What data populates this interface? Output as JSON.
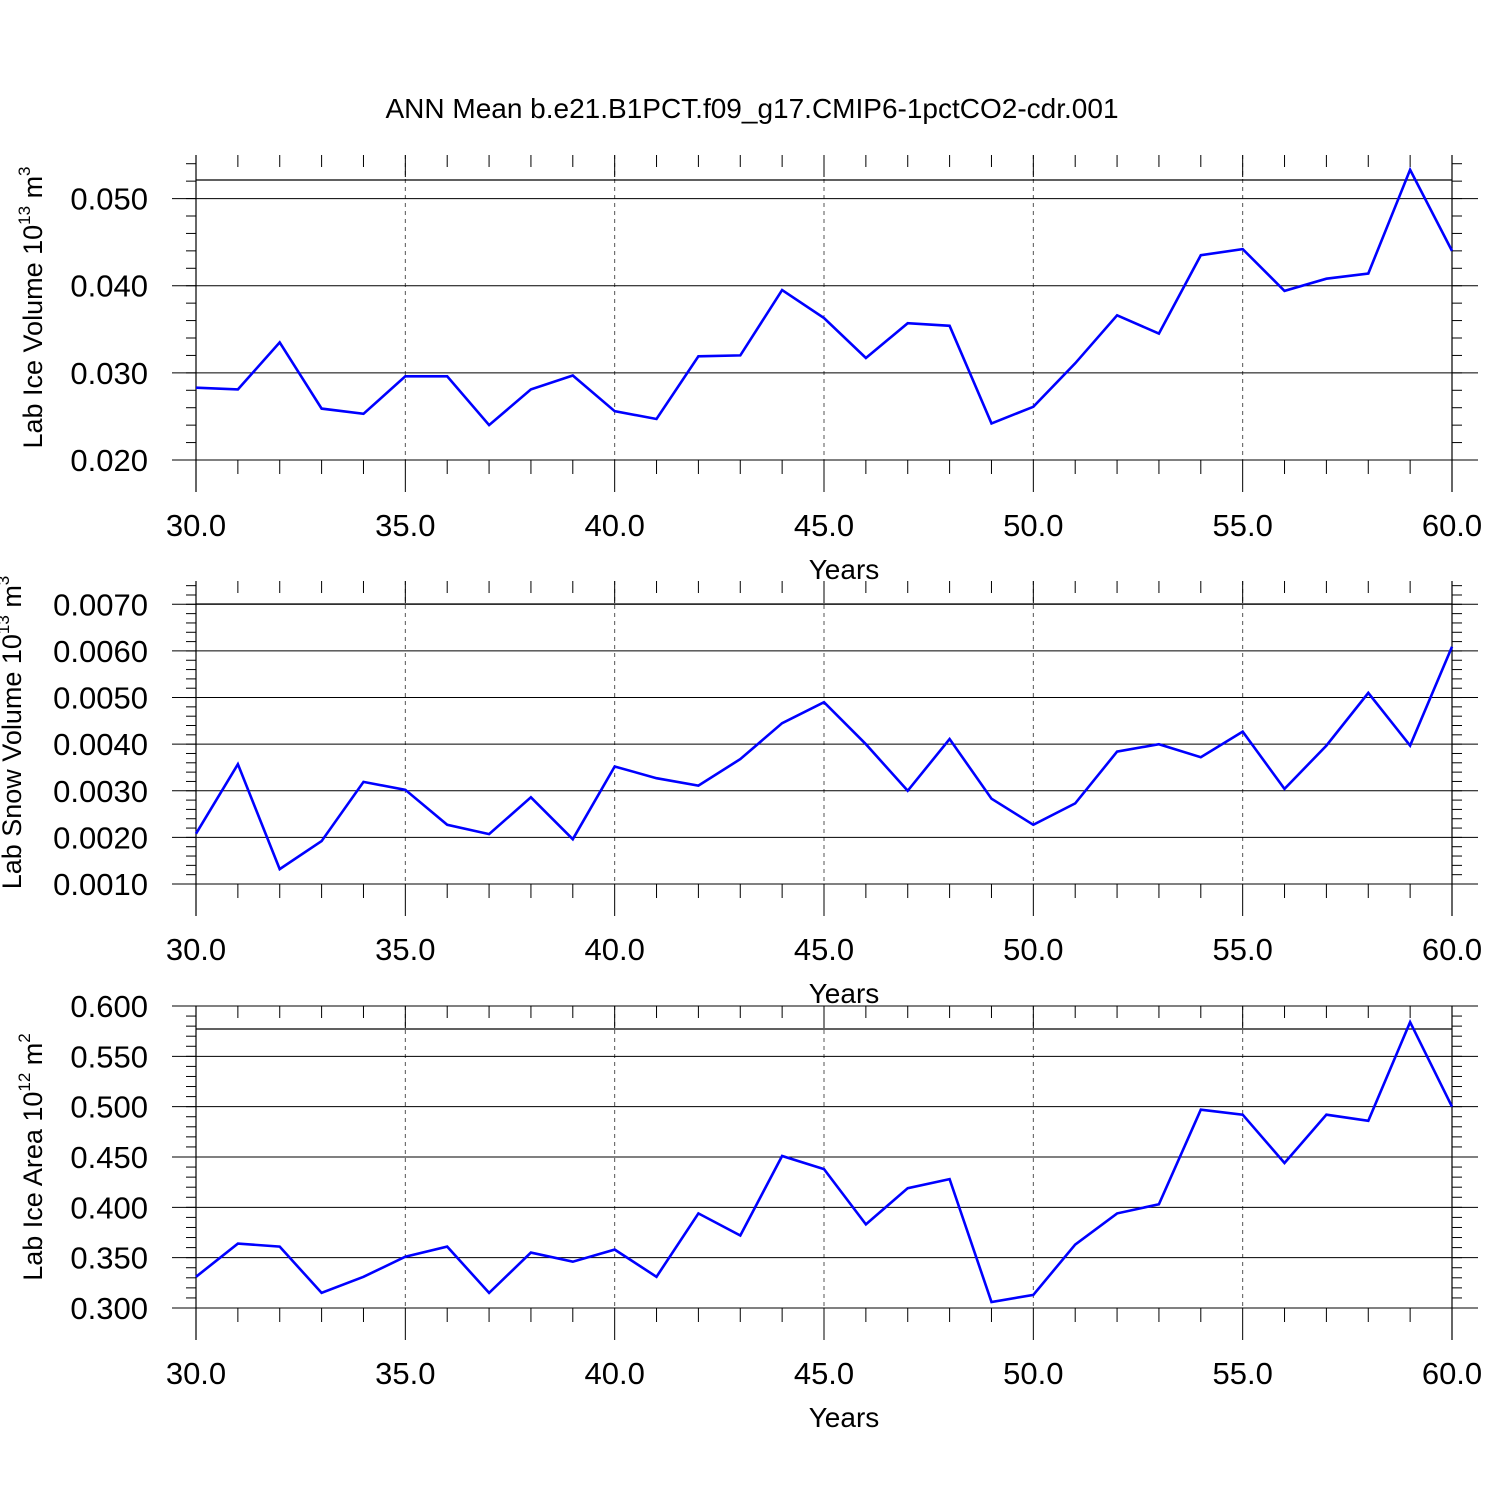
{
  "title": "ANN Mean b.e21.B1PCT.f09_g17.CMIP6-1pctCO2-cdr.001",
  "colors": {
    "line": "#0000ff",
    "axis": "#000000",
    "grid": "#555555"
  },
  "chart_data": [
    {
      "type": "line",
      "ylabel_main": "Lab Ice Volume 10",
      "ylabel_exp": "13",
      "ylabel_unit": " m",
      "ylabel_unit_exp": "3",
      "xlabel": "Years",
      "xlim": [
        30,
        60
      ],
      "ylim": [
        0.02,
        0.055
      ],
      "xticks": [
        "30.0",
        "35.0",
        "40.0",
        "45.0",
        "50.0",
        "55.0",
        "60.0"
      ],
      "yticks": [
        "0.020",
        "0.030",
        "0.040",
        "0.050"
      ],
      "grid": "dashed vertical at major x ticks",
      "x": [
        30,
        31,
        32,
        33,
        34,
        35,
        36,
        37,
        38,
        39,
        40,
        41,
        42,
        43,
        44,
        45,
        46,
        47,
        48,
        49,
        50,
        51,
        52,
        53,
        54,
        55,
        56,
        57,
        58,
        59,
        60
      ],
      "values": [
        0.0283,
        0.0281,
        0.0335,
        0.0259,
        0.0253,
        0.0296,
        0.0296,
        0.024,
        0.0281,
        0.0297,
        0.0256,
        0.0247,
        0.0319,
        0.032,
        0.0395,
        0.0363,
        0.0317,
        0.0357,
        0.0354,
        0.0242,
        0.0261,
        0.0311,
        0.0366,
        0.0345,
        0.0435,
        0.0442,
        0.0394,
        0.0408,
        0.0414,
        0.0533,
        0.044
      ]
    },
    {
      "type": "line",
      "ylabel_main": "Lab Snow Volume 10",
      "ylabel_exp": "13",
      "ylabel_unit": " m",
      "ylabel_unit_exp": "3",
      "xlabel": "Years",
      "xlim": [
        30,
        60
      ],
      "ylim": [
        0.001,
        0.0075
      ],
      "xticks": [
        "30.0",
        "35.0",
        "40.0",
        "45.0",
        "50.0",
        "55.0",
        "60.0"
      ],
      "yticks": [
        "0.0010",
        "0.0020",
        "0.0030",
        "0.0040",
        "0.0050",
        "0.0060",
        "0.0070"
      ],
      "grid": "dashed vertical at major x ticks",
      "x": [
        30,
        31,
        32,
        33,
        34,
        35,
        36,
        37,
        38,
        39,
        40,
        41,
        42,
        43,
        44,
        45,
        46,
        47,
        48,
        49,
        50,
        51,
        52,
        53,
        54,
        55,
        56,
        57,
        58,
        59,
        60
      ],
      "values": [
        0.00208,
        0.00357,
        0.00132,
        0.00192,
        0.00319,
        0.00302,
        0.00227,
        0.00207,
        0.00286,
        0.00196,
        0.00352,
        0.00327,
        0.00311,
        0.00368,
        0.00445,
        0.0049,
        0.004,
        0.003,
        0.00411,
        0.00283,
        0.00227,
        0.00273,
        0.00384,
        0.004,
        0.00372,
        0.00427,
        0.00304,
        0.00397,
        0.0051,
        0.00397,
        0.00609
      ]
    },
    {
      "type": "line",
      "ylabel_main": "Lab Ice Area 10",
      "ylabel_exp": "12",
      "ylabel_unit": " m",
      "ylabel_unit_exp": "2",
      "xlabel": "Years",
      "xlim": [
        30,
        60
      ],
      "ylim": [
        0.3,
        0.6
      ],
      "xticks": [
        "30.0",
        "35.0",
        "40.0",
        "45.0",
        "50.0",
        "55.0",
        "60.0"
      ],
      "yticks": [
        "0.300",
        "0.350",
        "0.400",
        "0.450",
        "0.500",
        "0.550",
        "0.600"
      ],
      "grid": "dashed vertical at major x ticks",
      "x": [
        30,
        31,
        32,
        33,
        34,
        35,
        36,
        37,
        38,
        39,
        40,
        41,
        42,
        43,
        44,
        45,
        46,
        47,
        48,
        49,
        50,
        51,
        52,
        53,
        54,
        55,
        56,
        57,
        58,
        59,
        60
      ],
      "values": [
        0.331,
        0.364,
        0.361,
        0.315,
        0.331,
        0.351,
        0.361,
        0.315,
        0.355,
        0.346,
        0.358,
        0.331,
        0.394,
        0.372,
        0.451,
        0.438,
        0.383,
        0.419,
        0.428,
        0.306,
        0.313,
        0.363,
        0.394,
        0.403,
        0.497,
        0.492,
        0.444,
        0.492,
        0.486,
        0.584,
        0.5
      ]
    }
  ]
}
